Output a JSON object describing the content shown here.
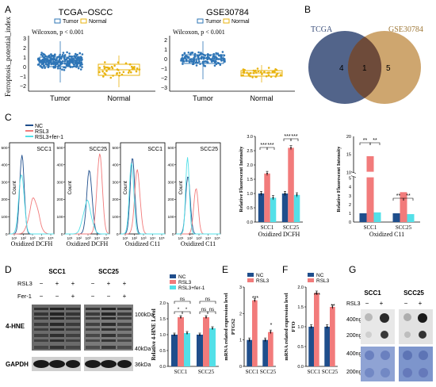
{
  "panel_letters": {
    "A": "A",
    "B": "B",
    "C": "C",
    "D": "D",
    "E": "E",
    "F": "F",
    "G": "G"
  },
  "colors": {
    "tumor": "#2e75b6",
    "normal": "#e8b30e",
    "nc": "#1f4e8c",
    "rsl3": "#f27b7b",
    "rsl3_fer1": "#53e0e8",
    "venn_left": "#3a4e7a",
    "venn_right": "#c79a5b",
    "venn_overlap": "#6e4b3a"
  },
  "panel_a": {
    "ylabel": "Ferroptosis_potential_index",
    "plots": [
      {
        "title": "TCGA−OSCC",
        "legend": [
          "Tumor",
          "Normal"
        ],
        "stat": "Wilcoxon, p < 0.001",
        "yticks": [
          "3",
          "2",
          "1",
          "0",
          "−1",
          "−2"
        ],
        "xcats": [
          "Tumor",
          "Normal"
        ]
      },
      {
        "title": "GSE30784",
        "legend": [
          "Tumor",
          "Normal"
        ],
        "stat": "Wilcoxon, p < 0.001",
        "yticks": [
          "2",
          "1",
          "0",
          "−1",
          "−2",
          "−3"
        ],
        "xcats": [
          "Tumor",
          "Normal"
        ]
      }
    ]
  },
  "panel_b": {
    "left_label": "TCGA",
    "right_label": "GSE30784",
    "left_only": "4",
    "overlap": "1",
    "right_only": "5"
  },
  "panel_c": {
    "legend": [
      "NC",
      "RSL3",
      "RSL3+fer-1"
    ],
    "histograms": [
      {
        "cell": "SCC1",
        "xlabel": "Oxidized DCFH",
        "ylabel": "Count"
      },
      {
        "cell": "SCC25",
        "xlabel": "Oxidized DCFH",
        "ylabel": "Count"
      },
      {
        "cell": "SCC1",
        "xlabel": "Oxidized C11",
        "ylabel": "Count"
      },
      {
        "cell": "SCC25",
        "xlabel": "Oxidized C11",
        "ylabel": "Count"
      }
    ],
    "yticks": [
      "500",
      "400",
      "300",
      "200",
      "100",
      "0"
    ],
    "xticks": [
      "10¹",
      "10²",
      "10³",
      "10⁴",
      "10⁵"
    ]
  },
  "chart_data": [
    {
      "type": "bar",
      "ylabel": "Relative Fluorescent Intensity",
      "xlabel": "Oxidized DCFH",
      "categories": [
        "SCC1",
        "SCC25"
      ],
      "ylim": [
        0.0,
        3.0
      ],
      "yticks": [
        "0.0",
        "0.5",
        "1.0",
        "1.5",
        "2.0",
        "2.5",
        "3.0"
      ],
      "series": [
        {
          "name": "NC",
          "values": [
            1.0,
            1.0
          ]
        },
        {
          "name": "RSL3",
          "values": [
            1.7,
            2.6
          ]
        },
        {
          "name": "RSL3+fer-1",
          "values": [
            0.85,
            0.95
          ]
        }
      ],
      "annotations": [
        "***",
        "***",
        "***",
        "***"
      ]
    },
    {
      "type": "bar",
      "ylabel": "Relative Fluorescent Intensity",
      "xlabel": "Oxidized C11",
      "categories": [
        "SCC1",
        "SCC25"
      ],
      "yticks": [
        "0",
        "1",
        "2",
        "3",
        "4",
        "5",
        "10",
        "15",
        "20"
      ],
      "broken_axis": true,
      "series": [
        {
          "name": "NC",
          "values": [
            1.0,
            1.0
          ]
        },
        {
          "name": "RSL3",
          "values": [
            14.5,
            3.4
          ]
        },
        {
          "name": "RSL3+fer-1",
          "values": [
            1.1,
            0.9
          ]
        }
      ],
      "annotations": [
        "**",
        "**",
        "**",
        "**"
      ]
    },
    {
      "type": "bar",
      "ylabel": "Relative 4-HNE Level",
      "categories": [
        "SCC1",
        "SCC25"
      ],
      "ylim": [
        0.0,
        2.0
      ],
      "yticks": [
        "0.0",
        "0.5",
        "1.0",
        "1.5",
        "2.0"
      ],
      "series": [
        {
          "name": "NC",
          "values": [
            1.0,
            1.0
          ]
        },
        {
          "name": "RSL3",
          "values": [
            1.55,
            1.55
          ]
        },
        {
          "name": "RSL3+fer-1",
          "values": [
            1.05,
            1.2
          ]
        }
      ],
      "annotations": [
        "*",
        "*",
        "ns",
        "ns",
        "ns",
        "ns"
      ]
    },
    {
      "type": "bar",
      "ylabel": "PTGS2",
      "ylabel2": "mRNA related expression level",
      "categories": [
        "SCC1",
        "SCC25"
      ],
      "ylim": [
        0,
        3
      ],
      "yticks": [
        "0",
        "1",
        "2",
        "3"
      ],
      "series": [
        {
          "name": "NC",
          "values": [
            1.0,
            1.0
          ]
        },
        {
          "name": "RSL3",
          "values": [
            2.5,
            1.3
          ]
        }
      ],
      "annotations": [
        "***",
        "*"
      ]
    },
    {
      "type": "bar",
      "ylabel": "FTO",
      "ylabel2": "mRNA related expression level",
      "categories": [
        "SCC1",
        "SCC25"
      ],
      "ylim": [
        0.0,
        2.0
      ],
      "yticks": [
        "0.0",
        "0.5",
        "1.0",
        "1.5",
        "2.0"
      ],
      "series": [
        {
          "name": "NC",
          "values": [
            1.0,
            1.0
          ]
        },
        {
          "name": "RSL3",
          "values": [
            1.85,
            1.5
          ]
        }
      ],
      "annotations": [
        "***",
        "**"
      ]
    }
  ],
  "panel_d": {
    "headers": [
      "SCC1",
      "SCC25"
    ],
    "row_labels": [
      "RSL3",
      "Fer-1"
    ],
    "signs_rsl3": [
      "−",
      "+",
      "+",
      "−",
      "+",
      "+"
    ],
    "signs_fer1": [
      "−",
      "−",
      "+",
      "−",
      "−",
      "+"
    ],
    "band_labels": [
      "4-HNE",
      "GAPDH"
    ],
    "sizes": [
      "100kDa",
      "40kDa",
      "36kDa"
    ]
  },
  "panel_g": {
    "headers": [
      "SCC1",
      "SCC25"
    ],
    "rsl3_label": "RSL3",
    "signs": [
      "−",
      "+",
      "−",
      "+"
    ],
    "loads": [
      "400ng",
      "200ng",
      "400ng",
      "200ng"
    ]
  }
}
